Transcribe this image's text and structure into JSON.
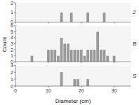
{
  "chart_data": [
    {
      "type": "bar",
      "title": "2",
      "x": [
        14,
        17,
        22,
        27
      ],
      "values": [
        1,
        1,
        1,
        1
      ],
      "color": "#999999",
      "xlim": [
        0,
        35
      ],
      "xticks": [
        0,
        10,
        20,
        30
      ],
      "ylim": [
        0,
        2
      ],
      "yticks": [
        0,
        1,
        2
      ],
      "tick_labels": "y"
    },
    {
      "type": "bar",
      "title": "B",
      "ylabel": "Count",
      "x": [
        5,
        10,
        11,
        12,
        13,
        14,
        15,
        16,
        17,
        18,
        19,
        20,
        21,
        22,
        23,
        24,
        25,
        26,
        27,
        28,
        30
      ],
      "values": [
        1,
        2,
        2,
        2,
        1,
        4,
        3,
        3,
        2,
        2,
        2,
        2,
        1,
        2,
        2,
        2,
        5,
        2,
        2,
        1,
        1
      ],
      "color": "#999999",
      "xlim": [
        0,
        35
      ],
      "xticks": [
        0,
        10,
        20,
        30
      ],
      "ylim": [
        0,
        6
      ],
      "yticks": [
        0,
        1,
        2,
        3,
        4,
        5,
        6
      ],
      "tick_labels": "y"
    },
    {
      "type": "bar",
      "title": "S",
      "xlabel": "Diameter (cm)",
      "x": [
        14,
        18,
        19,
        22
      ],
      "values": [
        2,
        1,
        1,
        1
      ],
      "color": "#999999",
      "xlim": [
        0,
        35
      ],
      "xticks": [
        0,
        10,
        20,
        30
      ],
      "ylim": [
        0,
        3
      ],
      "yticks": [
        0,
        1,
        2,
        3
      ]
    }
  ]
}
